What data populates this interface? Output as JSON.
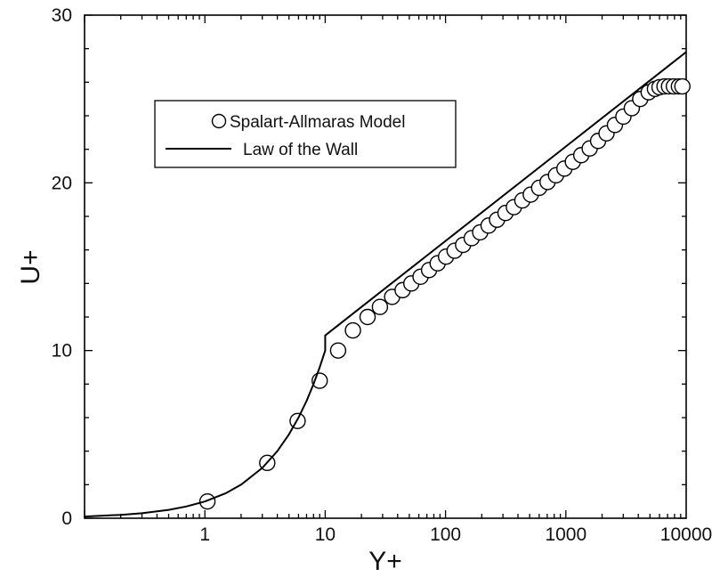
{
  "chart_data": {
    "type": "scatter",
    "xlabel": "Y+",
    "ylabel": "U+",
    "xscale": "log",
    "xlim": [
      0.1,
      10000
    ],
    "ylim": [
      0,
      30
    ],
    "x_ticks": [
      {
        "value": 1,
        "label": "1"
      },
      {
        "value": 10,
        "label": "10"
      },
      {
        "value": 100,
        "label": "100"
      },
      {
        "value": 1000,
        "label": "1000"
      },
      {
        "value": 10000,
        "label": "10000"
      }
    ],
    "y_ticks": [
      {
        "value": 0,
        "label": "0"
      },
      {
        "value": 10,
        "label": "10"
      },
      {
        "value": 20,
        "label": "20"
      },
      {
        "value": 30,
        "label": "30"
      }
    ],
    "grid": false,
    "legend_position": "upper-left",
    "legend_box": true,
    "series": [
      {
        "name": "Spalart-Allmaras Model",
        "kind": "markers",
        "marker": "open-circle",
        "color": "#000000",
        "x": [
          1.05,
          3.3,
          5.9,
          9.0,
          12.8,
          17.0,
          22.5,
          28.5,
          36,
          44,
          52,
          62,
          73,
          86,
          101,
          119,
          140,
          165,
          194,
          228,
          268,
          315,
          370,
          435,
          511,
          600,
          705,
          828,
          973,
          1143,
          1343,
          1578,
          1854,
          2178,
          2559,
          3007,
          3533,
          4151,
          4877,
          5500,
          6000,
          6600,
          7200,
          7900,
          8700,
          9300
        ],
        "y": [
          1.0,
          3.3,
          5.8,
          8.2,
          10.0,
          11.2,
          12.0,
          12.6,
          13.2,
          13.6,
          14.0,
          14.4,
          14.8,
          15.2,
          15.6,
          15.95,
          16.3,
          16.7,
          17.05,
          17.45,
          17.8,
          18.2,
          18.55,
          18.95,
          19.3,
          19.7,
          20.05,
          20.45,
          20.85,
          21.25,
          21.65,
          22.05,
          22.5,
          22.95,
          23.45,
          23.95,
          24.45,
          25.0,
          25.4,
          25.6,
          25.7,
          25.75,
          25.75,
          25.75,
          25.75,
          25.75
        ]
      },
      {
        "name": "Law of the Wall",
        "kind": "line",
        "color": "#000000",
        "x": [
          0.1,
          0.2,
          0.3,
          0.5,
          0.7,
          1,
          1.5,
          2,
          3,
          4,
          5,
          6,
          7,
          8,
          9,
          10,
          10,
          10000
        ],
        "y": [
          0.1,
          0.2,
          0.3,
          0.5,
          0.7,
          1,
          1.5,
          2,
          3,
          4,
          5,
          6,
          7,
          8,
          9,
          10,
          10.9,
          27.8
        ]
      }
    ]
  }
}
